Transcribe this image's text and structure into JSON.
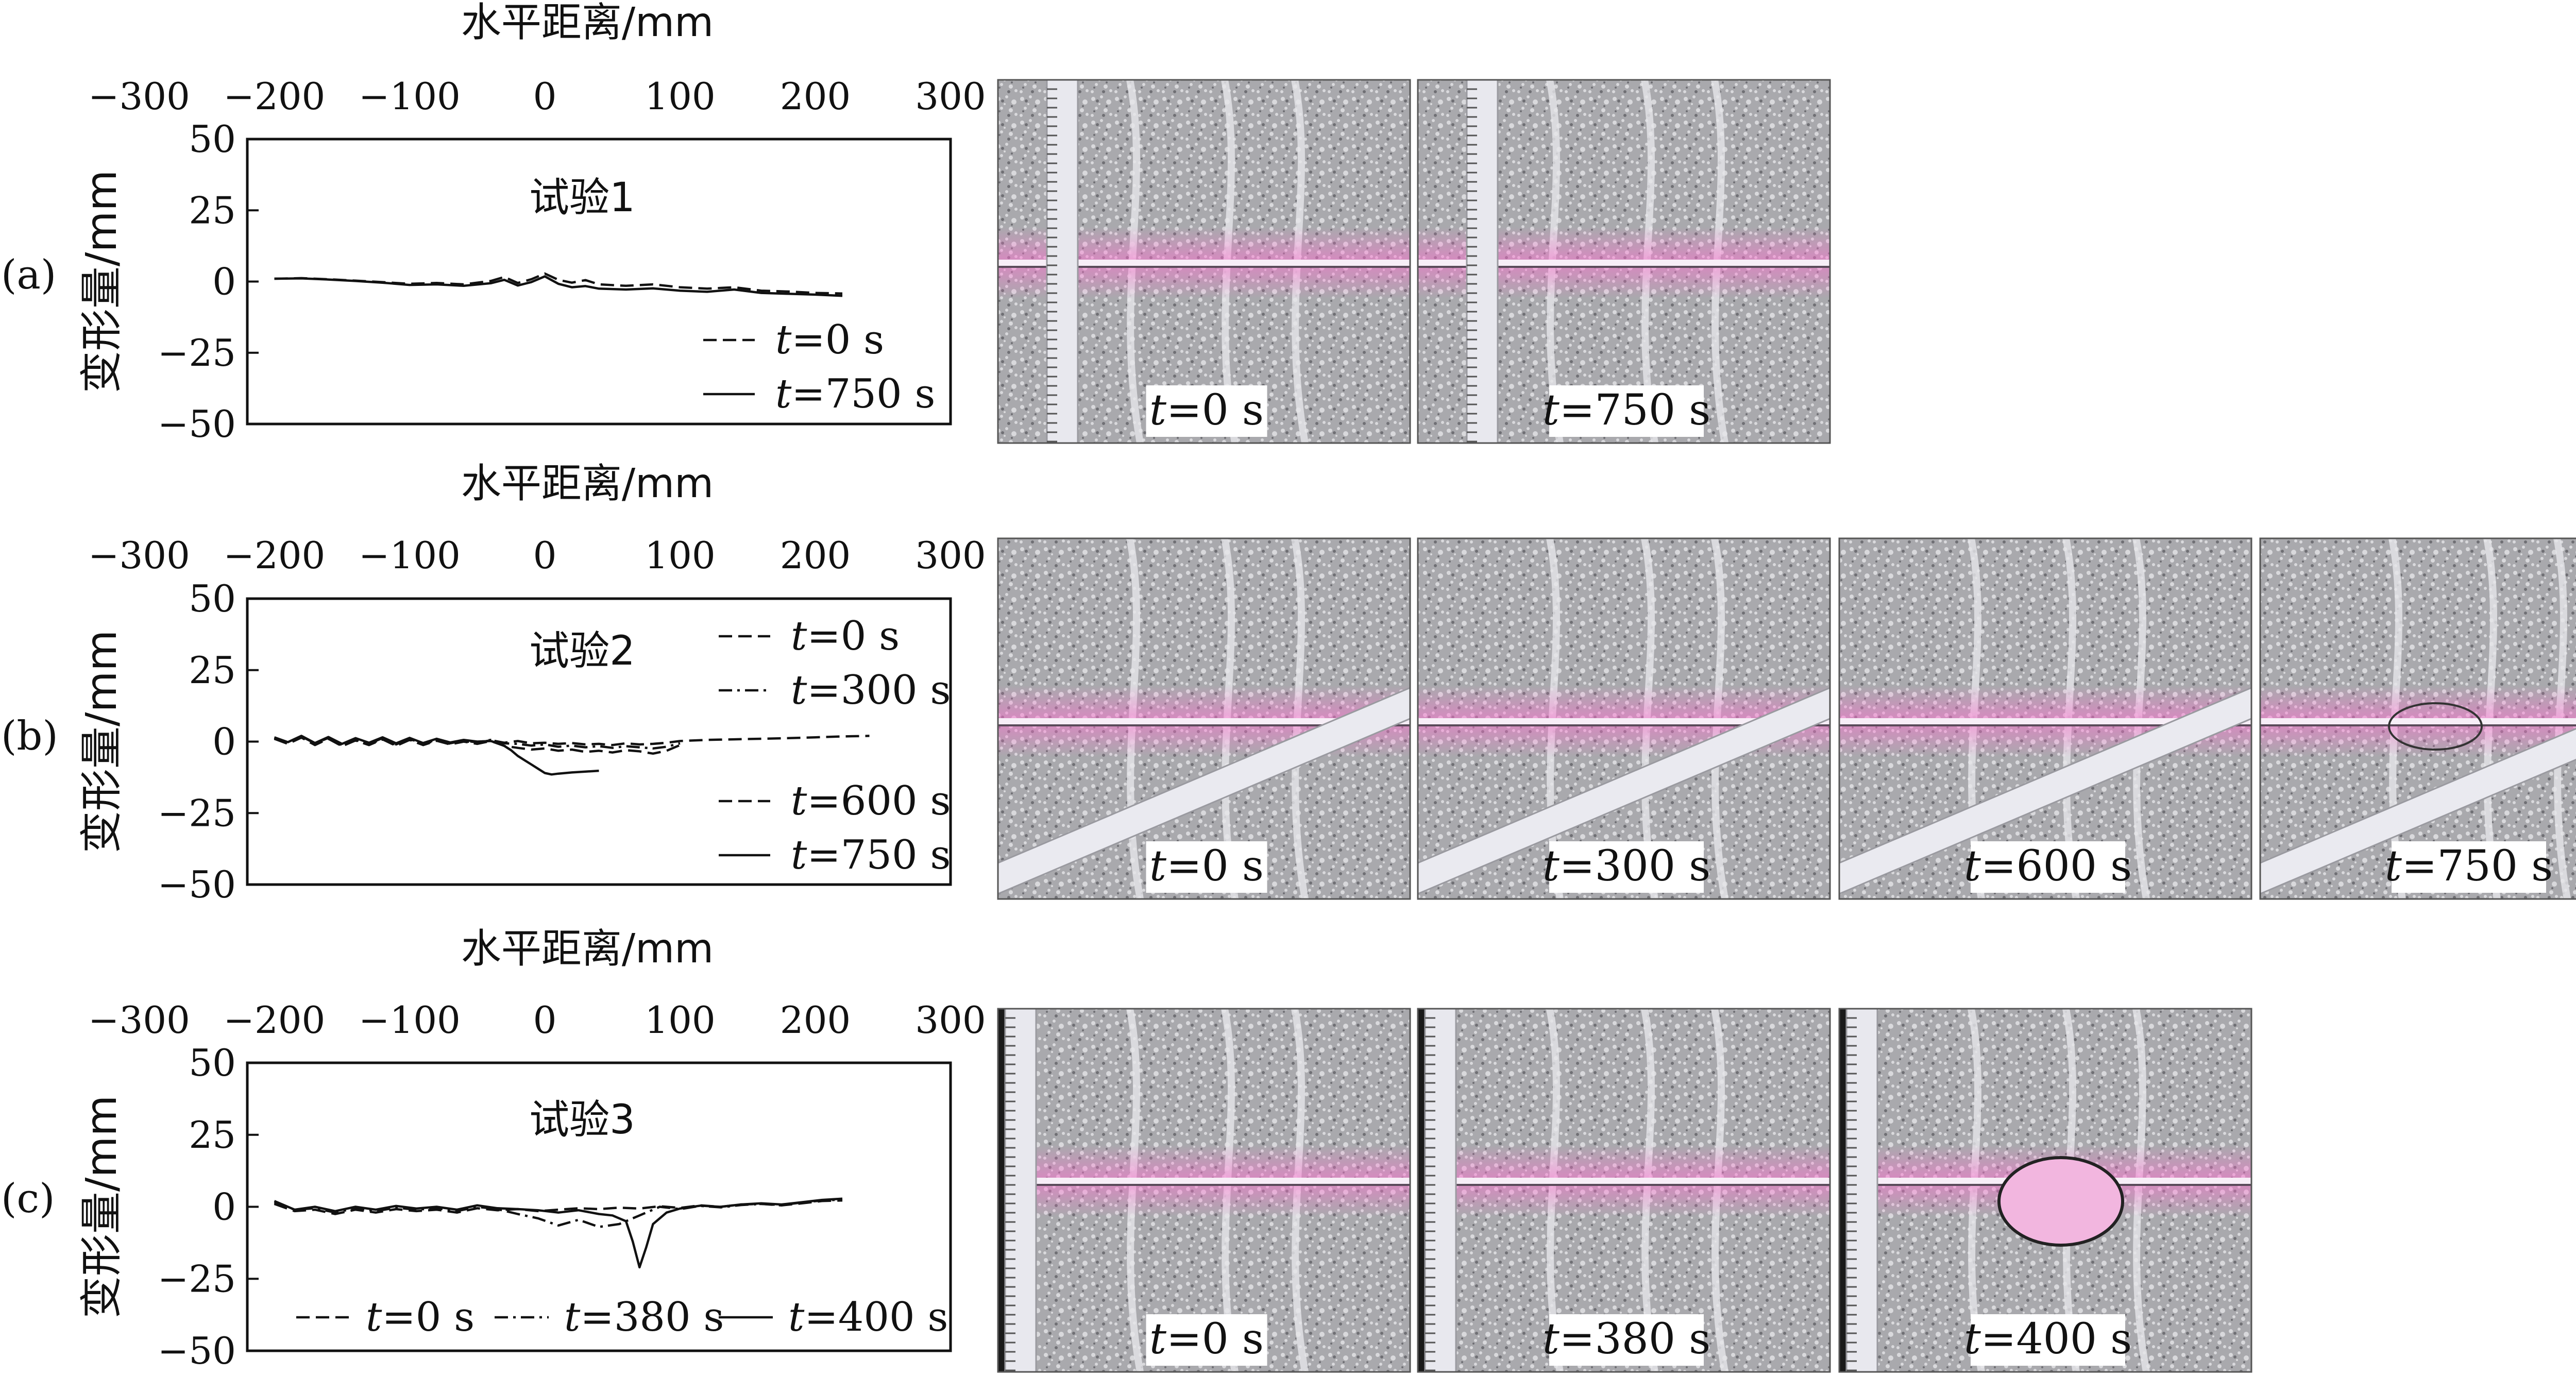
{
  "figure": {
    "panels": [
      {
        "tag": "(a)",
        "test_label": "试验1"
      },
      {
        "tag": "(b)",
        "test_label": "试验2"
      },
      {
        "tag": "(c)",
        "test_label": "试验3"
      }
    ],
    "photos": [
      [
        "t=0 s",
        "t=750 s"
      ],
      [
        "t=0 s",
        "t=300 s",
        "t=600 s",
        "t=750 s"
      ],
      [
        "t=0 s",
        "t=380 s",
        "t=400 s"
      ]
    ]
  },
  "chart_data": [
    {
      "type": "line",
      "xlabel": "水平距离/mm",
      "ylabel": "变形量/mm",
      "xlim": [
        -300,
        300
      ],
      "ylim": [
        -50,
        50
      ],
      "xticks": [
        "−300",
        "−200",
        "−100",
        "0",
        "100",
        "200",
        "300"
      ],
      "yticks": [
        "50",
        "25",
        "0",
        "−25",
        "−50"
      ],
      "x_axis_position": "top",
      "legend_position": "bottom-right",
      "annotation": "试验1",
      "series": [
        {
          "name": "t=0 s",
          "style": "dashed",
          "x": [
            -200,
            -180,
            -160,
            -140,
            -120,
            -100,
            -80,
            -60,
            -40,
            -30,
            -20,
            -10,
            0,
            10,
            20,
            30,
            40,
            60,
            80,
            100,
            120,
            140,
            160,
            180,
            200,
            220
          ],
          "y": [
            1,
            1.2,
            0.8,
            0.3,
            -0.2,
            -0.8,
            -0.5,
            -1,
            0.2,
            1.6,
            -0.5,
            0.8,
            2.8,
            0.6,
            -0.4,
            0.5,
            -1,
            -1.5,
            -1,
            -2,
            -2.5,
            -2,
            -3.2,
            -3.5,
            -4,
            -4.2
          ]
        },
        {
          "name": "t=750 s",
          "style": "solid",
          "x": [
            -200,
            -180,
            -160,
            -140,
            -120,
            -100,
            -80,
            -60,
            -40,
            -30,
            -20,
            -10,
            0,
            10,
            20,
            30,
            40,
            60,
            80,
            100,
            120,
            140,
            160,
            180,
            200,
            220
          ],
          "y": [
            1,
            1.1,
            0.7,
            0.2,
            -0.4,
            -1.2,
            -1,
            -1.5,
            -0.6,
            0.6,
            -1.4,
            -0.2,
            1.8,
            -0.8,
            -2,
            -1.6,
            -2.5,
            -2.8,
            -2.4,
            -3.2,
            -3.6,
            -2.8,
            -4,
            -4.3,
            -4.6,
            -5
          ]
        }
      ]
    },
    {
      "type": "line",
      "xlabel": "水平距离/mm",
      "ylabel": "变形量/mm",
      "xlim": [
        -300,
        300
      ],
      "ylim": [
        -50,
        50
      ],
      "xticks": [
        "−300",
        "−200",
        "−100",
        "0",
        "100",
        "200",
        "300"
      ],
      "yticks": [
        "50",
        "25",
        "0",
        "−25",
        "−50"
      ],
      "x_axis_position": "top",
      "legend_position": "right",
      "annotation": "试验2",
      "series": [
        {
          "name": "t=0 s",
          "style": "dashed",
          "x": [
            -200,
            -190,
            -180,
            -170,
            -160,
            -150,
            -140,
            -130,
            -120,
            -110,
            -100,
            -90,
            -80,
            -70,
            -60,
            -50,
            -40,
            -30,
            -20,
            -10,
            0,
            10,
            20,
            30,
            40,
            50,
            60,
            70,
            80,
            90,
            100,
            120,
            140,
            160,
            180,
            200,
            220,
            240
          ],
          "y": [
            1,
            -0.5,
            1.5,
            -1,
            1,
            -1.5,
            0.5,
            -1,
            1,
            -1.2,
            0.8,
            -1,
            0.5,
            -0.8,
            0.2,
            -0.5,
            0.5,
            -0.4,
            0.2,
            -0.6,
            -0.4,
            -0.8,
            -0.5,
            -1,
            -0.8,
            -1.2,
            -0.6,
            -1,
            -0.8,
            -0.4,
            0.2,
            0.6,
            0.8,
            1,
            1.2,
            1.5,
            1.8,
            2
          ]
        },
        {
          "name": "t=300 s",
          "style": "dashdot",
          "x": [
            -200,
            -190,
            -180,
            -170,
            -160,
            -150,
            -140,
            -130,
            -120,
            -110,
            -100,
            -90,
            -80,
            -70,
            -60,
            -50,
            -40,
            -30,
            -20,
            -10,
            0,
            10,
            20,
            30,
            40,
            50,
            60,
            70,
            80,
            90,
            100
          ],
          "y": [
            1.2,
            -0.3,
            1.8,
            -0.6,
            1.3,
            -1.2,
            0.8,
            -0.7,
            1.2,
            -1,
            1,
            -0.8,
            0.7,
            -0.6,
            0.4,
            -0.3,
            0.6,
            -0.6,
            -0.8,
            -1.4,
            -1,
            -1.8,
            -1.4,
            -2,
            -1.6,
            -2.2,
            -1.6,
            -2,
            -2.4,
            -1.8,
            -0.6
          ]
        },
        {
          "name": "t=600 s",
          "style": "dashed",
          "x": [
            -200,
            -190,
            -180,
            -170,
            -160,
            -150,
            -140,
            -130,
            -120,
            -110,
            -100,
            -90,
            -80,
            -70,
            -60,
            -50,
            -40,
            -30,
            -20,
            -10,
            0,
            10,
            20,
            30,
            40,
            50,
            60,
            70,
            80,
            90,
            100
          ],
          "y": [
            1,
            -0.8,
            1.4,
            -1.2,
            1,
            -1.6,
            0.4,
            -1.2,
            0.8,
            -1.5,
            0.6,
            -1.2,
            0.3,
            -1,
            0,
            -0.8,
            0.2,
            -1.5,
            -2.2,
            -2.8,
            -2.4,
            -3.2,
            -2.8,
            -3.6,
            -3.2,
            -3.8,
            -3,
            -3.4,
            -4.2,
            -3.2,
            -1.2
          ]
        },
        {
          "name": "t=750 s",
          "style": "solid",
          "x": [
            -200,
            -190,
            -180,
            -170,
            -160,
            -150,
            -140,
            -130,
            -120,
            -110,
            -100,
            -90,
            -80,
            -70,
            -60,
            -50,
            -40,
            -35,
            -30,
            -25,
            -20,
            -15,
            -10,
            -5,
            0,
            5,
            10,
            20,
            30,
            40
          ],
          "y": [
            1.5,
            -0.2,
            2,
            -0.5,
            1.6,
            -0.8,
            1.2,
            -0.4,
            1.5,
            -0.6,
            1.3,
            -0.5,
            1,
            -0.3,
            0.6,
            0,
            0.2,
            -0.5,
            -1.5,
            -3,
            -5,
            -6.5,
            -8,
            -9.5,
            -11,
            -11.5,
            -11.2,
            -10.8,
            -10.5,
            -10.2
          ]
        }
      ]
    },
    {
      "type": "line",
      "xlabel": "水平距离/mm",
      "ylabel": "变形量/mm",
      "xlim": [
        -300,
        300
      ],
      "ylim": [
        -50,
        50
      ],
      "xticks": [
        "−300",
        "−200",
        "−100",
        "0",
        "100",
        "200",
        "300"
      ],
      "yticks": [
        "50",
        "25",
        "0",
        "−25",
        "−50"
      ],
      "x_axis_position": "top",
      "legend_position": "bottom",
      "annotation": "试验3",
      "series": [
        {
          "name": "t=0 s",
          "style": "dashed",
          "x": [
            -200,
            -185,
            -170,
            -155,
            -140,
            -125,
            -110,
            -95,
            -80,
            -65,
            -50,
            -35,
            -20,
            -5,
            10,
            25,
            40,
            55,
            70,
            85,
            100,
            115,
            130,
            145,
            160,
            175,
            190,
            205,
            220
          ],
          "y": [
            1,
            -1.5,
            -1,
            -2.5,
            -1,
            -2,
            -0.8,
            -1.5,
            -1,
            -2,
            -0.5,
            -1.2,
            -0.8,
            -1.5,
            -1,
            -0.5,
            -0.8,
            -0.3,
            -0.6,
            0.2,
            -0.4,
            0.5,
            0,
            0.8,
            1,
            0.5,
            1.2,
            2,
            2.2
          ]
        },
        {
          "name": "t=380 s",
          "style": "dashdot",
          "x": [
            -200,
            -185,
            -170,
            -155,
            -140,
            -125,
            -110,
            -95,
            -80,
            -65,
            -50,
            -35,
            -20,
            -5,
            10,
            25,
            40,
            55,
            70,
            85,
            100,
            115,
            130,
            145,
            160,
            175,
            190,
            205,
            220
          ],
          "y": [
            1.5,
            -1,
            -0.5,
            -2,
            -0.5,
            -1.5,
            -0.3,
            -1,
            -0.5,
            -1.5,
            0,
            -0.8,
            -2.5,
            -4,
            -6.5,
            -4.5,
            -7,
            -6,
            -3,
            0,
            -0.8,
            0.3,
            -0.2,
            0.6,
            1,
            0.6,
            1.5,
            2.2,
            2.5
          ]
        },
        {
          "name": "t=400 s",
          "style": "solid",
          "x": [
            -200,
            -185,
            -170,
            -155,
            -140,
            -125,
            -110,
            -95,
            -80,
            -65,
            -50,
            -35,
            -20,
            -5,
            10,
            25,
            40,
            50,
            60,
            65,
            70,
            75,
            80,
            85,
            90,
            100,
            115,
            130,
            145,
            160,
            175,
            190,
            205,
            220
          ],
          "y": [
            2,
            -1,
            0,
            -1.5,
            0,
            -1,
            0.3,
            -0.6,
            0,
            -1,
            0.5,
            -0.5,
            -0.8,
            -1.2,
            -2,
            -1.2,
            -2.5,
            -3,
            -5,
            -12,
            -21,
            -14,
            -6,
            -4,
            -2,
            -0.6,
            0.4,
            0,
            0.8,
            1.2,
            0.8,
            1.6,
            2.4,
            2.8
          ]
        }
      ]
    }
  ]
}
